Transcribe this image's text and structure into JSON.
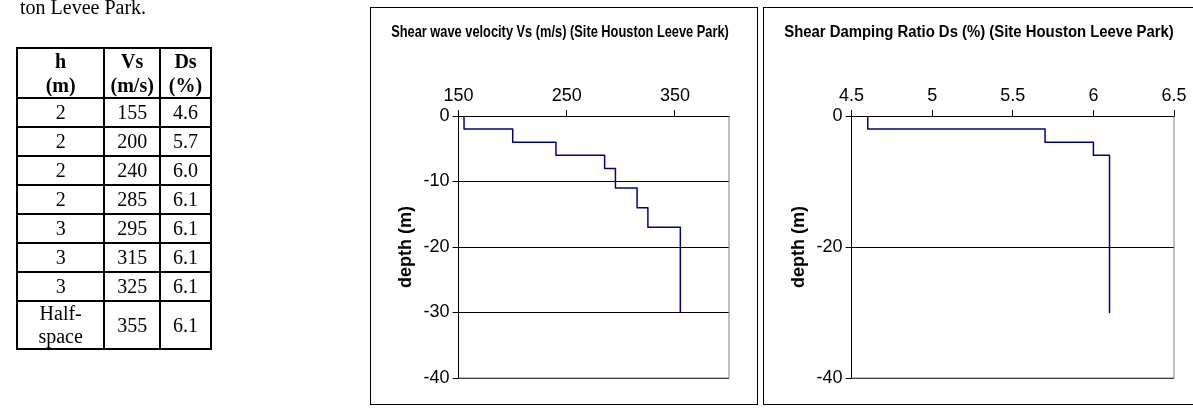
{
  "chart_data": [
    {
      "type": "other",
      "annotations": [
        "ton Levee  Park."
      ],
      "categories": [
        "h (m)",
        "Vs (m/s)",
        "Ds (%)"
      ],
      "cell_labels": [
        [
          "2",
          "155",
          "4.6"
        ],
        [
          "2",
          "200",
          "5.7"
        ],
        [
          "2",
          "240",
          "6.0"
        ],
        [
          "2",
          "285",
          "6.1"
        ],
        [
          "3",
          "295",
          "6.1"
        ],
        [
          "3",
          "315",
          "6.1"
        ],
        [
          "3",
          "325",
          "6.1"
        ],
        [
          "Half-space",
          "355",
          "6.1"
        ]
      ]
    },
    {
      "type": "line",
      "title": "Shear wave velocity Vs (m/s) (Site Houston Leeve Park)",
      "ylabel": "depth (m)",
      "xlim": [
        150,
        400
      ],
      "xticks": [
        150,
        250,
        350
      ],
      "ylim": [
        -40,
        0
      ],
      "yticks": [
        0,
        -10,
        -20,
        -30,
        -40
      ],
      "grid": "y",
      "marker": "none",
      "series": [
        {
          "color": "#000080",
          "x": [
            155,
            155,
            200,
            200,
            240,
            240,
            285,
            285,
            295,
            295,
            315,
            315,
            325,
            325,
            355,
            355
          ],
          "values": [
            0,
            -2,
            -2,
            -4,
            -4,
            -6,
            -6,
            -8,
            -8,
            -11,
            -11,
            -14,
            -14,
            -17,
            -17,
            -30
          ]
        }
      ]
    },
    {
      "type": "line",
      "title": "Shear Damping Ratio Ds (%) (Site Houston Leeve Park)",
      "ylabel": "depth (m)",
      "xlim": [
        4.5,
        6.5
      ],
      "xticks": [
        4.5,
        5,
        5.5,
        6,
        6.5
      ],
      "ylim": [
        -40,
        0
      ],
      "yticks": [
        0,
        -20,
        -40
      ],
      "grid": "y",
      "marker": "none",
      "series": [
        {
          "color": "#000080",
          "x": [
            4.6,
            4.6,
            5.7,
            5.7,
            6.0,
            6.0,
            6.1,
            6.1
          ],
          "values": [
            0,
            -2,
            -2,
            -4,
            -4,
            -6,
            -6,
            -30
          ]
        }
      ]
    }
  ]
}
